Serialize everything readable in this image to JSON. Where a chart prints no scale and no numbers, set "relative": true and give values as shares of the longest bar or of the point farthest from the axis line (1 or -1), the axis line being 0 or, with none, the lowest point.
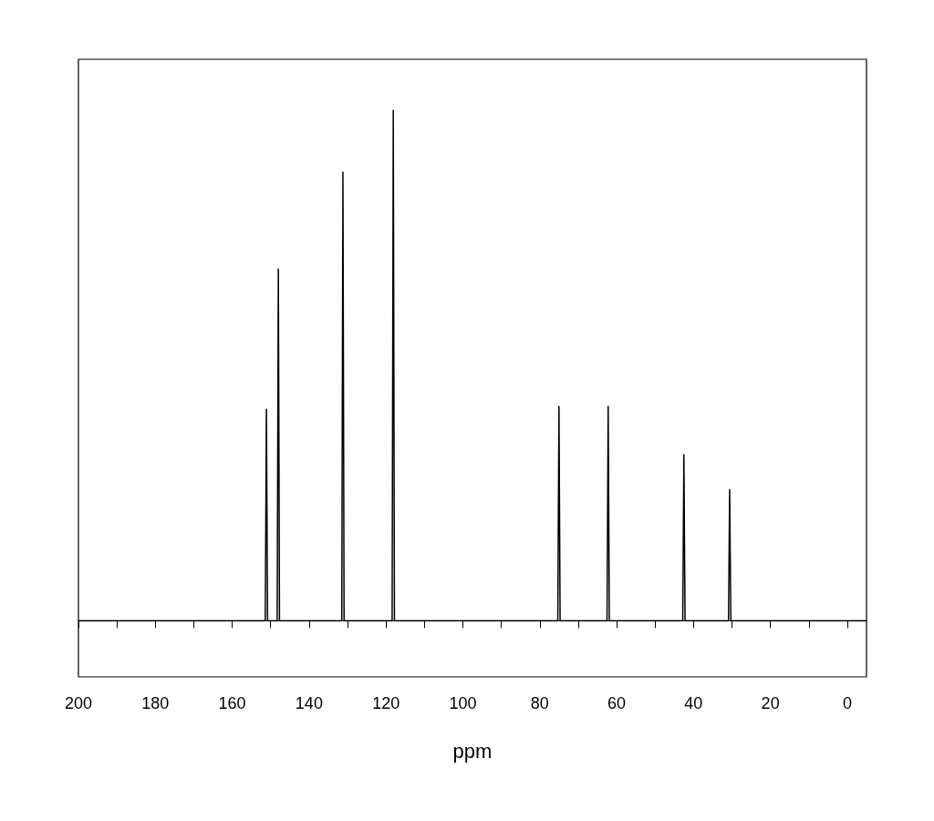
{
  "chart_data": {
    "type": "line",
    "xlabel": "ppm",
    "relative": true,
    "xlim": [
      200,
      -5
    ],
    "xticks": [
      200,
      {
        "value": 190,
        "label": null
      },
      180,
      {
        "value": 170,
        "label": null
      },
      160,
      {
        "value": 150,
        "label": null
      },
      140,
      {
        "value": 130,
        "label": null
      },
      120,
      {
        "value": 110,
        "label": null
      },
      100,
      {
        "value": 90,
        "label": null
      },
      80,
      {
        "value": 70,
        "label": null
      },
      60,
      {
        "value": 50,
        "label": null
      },
      40,
      {
        "value": 30,
        "label": null
      },
      20,
      {
        "value": 10,
        "label": null
      },
      0
    ],
    "x": [
      200,
      151.4,
      151.1,
      150.8,
      148.3,
      148.0,
      147.7,
      131.5,
      131.2,
      130.9,
      118.4,
      118.1,
      117.8,
      75.3,
      75.0,
      74.7,
      62.5,
      62.2,
      61.9,
      42.8,
      42.5,
      42.2,
      30.9,
      30.6,
      30.3,
      -5
    ],
    "series": [
      {
        "color": "#000000",
        "values": [
          0,
          0,
          0.414,
          0,
          0,
          0.689,
          0,
          0,
          0.879,
          0,
          0,
          1,
          0,
          0,
          0.42,
          0,
          0,
          0.42,
          0,
          0,
          0.325,
          0,
          0,
          0.257,
          0,
          0
        ]
      }
    ]
  }
}
